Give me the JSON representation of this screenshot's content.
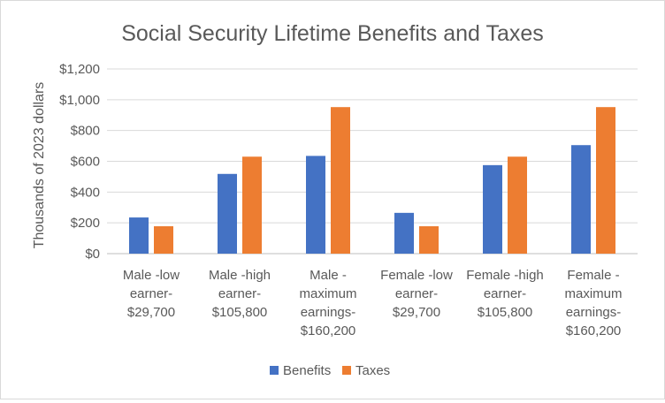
{
  "chart_data": {
    "type": "bar",
    "title": "Social Security Lifetime Benefits and Taxes",
    "ylabel": "Thousands of 2023 dollars",
    "xlabel": "",
    "ylim": [
      0,
      1200
    ],
    "yticks": [
      0,
      200,
      400,
      600,
      800,
      1000,
      1200
    ],
    "ytick_labels": [
      "$0",
      "$200",
      "$400",
      "$600",
      "$800",
      "$1,000",
      "$1,200"
    ],
    "grid": true,
    "legend_position": "bottom",
    "categories": [
      [
        "Male -low",
        "earner-",
        "$29,700"
      ],
      [
        "Male -high",
        "earner-",
        "$105,800"
      ],
      [
        "Male -",
        "maximum",
        "earnings-",
        "$160,200"
      ],
      [
        "Female -low",
        "earner-",
        "$29,700"
      ],
      [
        "Female -high",
        "earner-",
        "$105,800"
      ],
      [
        "Female -",
        "maximum",
        "earnings-",
        "$160,200"
      ]
    ],
    "series": [
      {
        "name": "Benefits",
        "color": "#4472c4",
        "values": [
          235,
          518,
          635,
          265,
          575,
          705
        ]
      },
      {
        "name": "Taxes",
        "color": "#ed7d31",
        "values": [
          178,
          630,
          952,
          178,
          630,
          952
        ]
      }
    ]
  }
}
